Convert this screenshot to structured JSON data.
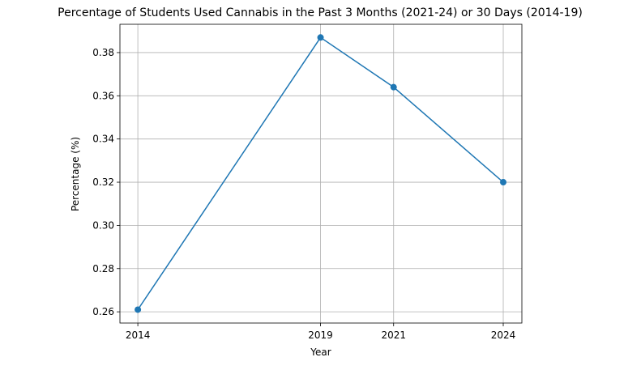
{
  "chart_data": {
    "type": "line",
    "title": "Percentage of Students Used Cannabis in the Past 3 Months (2021-24) or 30 Days (2014-19)",
    "x_label": "Year",
    "y_label": "Percentage (%)",
    "x": [
      2014,
      2019,
      2021,
      2024
    ],
    "series": [
      {
        "name": "Percentage",
        "color": "#1f77b4",
        "values": [
          0.261,
          0.387,
          0.364,
          0.32
        ]
      }
    ],
    "xlim": [
      2013.51,
      2024.51
    ],
    "xticks": [
      2014,
      2019,
      2021,
      2024
    ],
    "ylim": [
      0.2548,
      0.3931
    ],
    "yticks": [
      0.26,
      0.28,
      {
        "value": 0.3,
        "label": "0.30"
      },
      0.32,
      0.34,
      0.36,
      0.38
    ],
    "grid": true,
    "markers": true
  }
}
